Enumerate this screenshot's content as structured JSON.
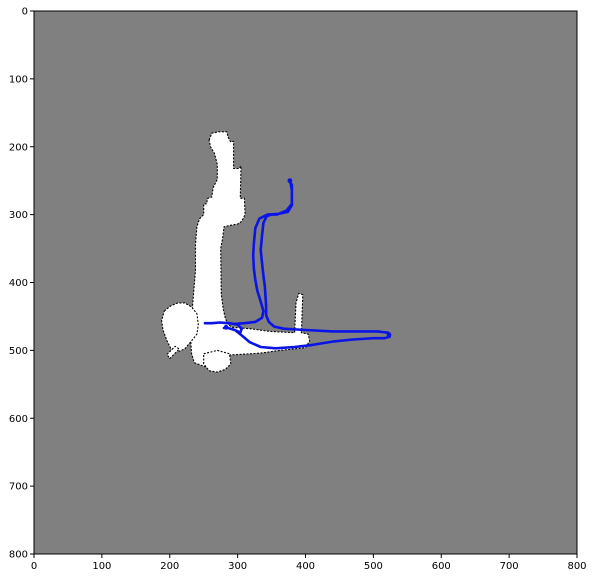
{
  "chart_data": {
    "type": "occupancy-grid-map",
    "title": "",
    "xlabel": "",
    "ylabel": "",
    "xlim": [
      0,
      800
    ],
    "ylim": [
      800,
      0
    ],
    "x_ticks": [
      0,
      100,
      200,
      300,
      400,
      500,
      600,
      700,
      800
    ],
    "y_ticks": [
      0,
      100,
      200,
      300,
      400,
      500,
      600,
      700,
      800
    ],
    "grid": false,
    "colors": {
      "unknown": "#808080",
      "free": "#ffffff",
      "obstacle": "#000000",
      "path": "#0a14e6"
    },
    "free_regions": [
      {
        "name": "top-branch",
        "polygon": [
          [
            258,
            190
          ],
          [
            262,
            180
          ],
          [
            272,
            178
          ],
          [
            284,
            178
          ],
          [
            286,
            186
          ],
          [
            290,
            193
          ],
          [
            294,
            192
          ],
          [
            294,
            232
          ],
          [
            302,
            232
          ],
          [
            305,
            228
          ],
          [
            304,
            276
          ],
          [
            310,
            276
          ],
          [
            311,
            300
          ],
          [
            306,
            310
          ],
          [
            300,
            314
          ],
          [
            288,
            316
          ],
          [
            280,
            318
          ],
          [
            278,
            334
          ],
          [
            276,
            345
          ],
          [
            275,
            350
          ],
          [
            276,
            418
          ],
          [
            279,
            440
          ],
          [
            282,
            453
          ],
          [
            286,
            462
          ],
          [
            292,
            466
          ],
          [
            318,
            468
          ],
          [
            348,
            472
          ],
          [
            384,
            474
          ],
          [
            386,
            430
          ],
          [
            390,
            416
          ],
          [
            396,
            418
          ],
          [
            394,
            474
          ],
          [
            404,
            476
          ],
          [
            406,
            486
          ],
          [
            400,
            496
          ],
          [
            362,
            500
          ],
          [
            334,
            504
          ],
          [
            304,
            506
          ],
          [
            284,
            507
          ],
          [
            272,
            512
          ],
          [
            260,
            520
          ],
          [
            252,
            524
          ],
          [
            236,
            518
          ],
          [
            232,
            504
          ],
          [
            230,
            470
          ],
          [
            234,
            430
          ],
          [
            238,
            382
          ],
          [
            238,
            344
          ],
          [
            240,
            318
          ],
          [
            244,
            306
          ],
          [
            250,
            300
          ],
          [
            250,
            284
          ],
          [
            254,
            284
          ],
          [
            256,
            276
          ],
          [
            262,
            274
          ],
          [
            264,
            260
          ],
          [
            270,
            248
          ],
          [
            270,
            226
          ],
          [
            266,
            210
          ],
          [
            260,
            200
          ]
        ]
      },
      {
        "name": "west-lobe",
        "polygon": [
          [
            192,
            442
          ],
          [
            202,
            434
          ],
          [
            212,
            430
          ],
          [
            222,
            430
          ],
          [
            232,
            436
          ],
          [
            240,
            446
          ],
          [
            242,
            462
          ],
          [
            240,
            476
          ],
          [
            232,
            486
          ],
          [
            222,
            498
          ],
          [
            212,
            502
          ],
          [
            202,
            498
          ],
          [
            196,
            486
          ],
          [
            190,
            470
          ],
          [
            188,
            456
          ]
        ]
      },
      {
        "name": "west-lobe-spike",
        "polygon": [
          [
            196,
            506
          ],
          [
            208,
            494
          ],
          [
            214,
            498
          ],
          [
            200,
            512
          ]
        ]
      },
      {
        "name": "lower-bulge",
        "polygon": [
          [
            250,
            505
          ],
          [
            270,
            500
          ],
          [
            288,
            505
          ],
          [
            290,
            520
          ],
          [
            282,
            528
          ],
          [
            270,
            532
          ],
          [
            258,
            530
          ],
          [
            250,
            520
          ]
        ]
      }
    ],
    "robot_path": [
      [
        377,
        252
      ],
      [
        380,
        256
      ],
      [
        380,
        284
      ],
      [
        372,
        294
      ],
      [
        358,
        300
      ],
      [
        350,
        300
      ],
      [
        343,
        302
      ],
      [
        338,
        312
      ],
      [
        336,
        330
      ],
      [
        334,
        352
      ],
      [
        336,
        372
      ],
      [
        338,
        390
      ],
      [
        340,
        405
      ],
      [
        341,
        420
      ],
      [
        342,
        435
      ],
      [
        342,
        448
      ],
      [
        346,
        458
      ],
      [
        354,
        465
      ],
      [
        368,
        468
      ],
      [
        400,
        470
      ],
      [
        440,
        472
      ],
      [
        478,
        472
      ],
      [
        505,
        472
      ],
      [
        522,
        474
      ],
      [
        524,
        480
      ],
      [
        516,
        482
      ],
      [
        500,
        482
      ],
      [
        470,
        484
      ],
      [
        440,
        487
      ],
      [
        410,
        492
      ],
      [
        384,
        495
      ],
      [
        356,
        497
      ],
      [
        334,
        495
      ],
      [
        318,
        488
      ],
      [
        306,
        478
      ],
      [
        296,
        470
      ],
      [
        286,
        467
      ],
      [
        280,
        467
      ],
      [
        286,
        467
      ],
      [
        296,
        470
      ],
      [
        304,
        474
      ],
      [
        306,
        468
      ],
      [
        300,
        462
      ],
      [
        288,
        460
      ],
      [
        274,
        459
      ],
      [
        262,
        460
      ],
      [
        252,
        460
      ],
      [
        262,
        460
      ],
      [
        274,
        459
      ],
      [
        286,
        460
      ],
      [
        296,
        461
      ],
      [
        310,
        460
      ],
      [
        326,
        458
      ],
      [
        336,
        452
      ],
      [
        338,
        442
      ],
      [
        334,
        428
      ],
      [
        329,
        412
      ],
      [
        326,
        396
      ],
      [
        324,
        380
      ],
      [
        323,
        360
      ],
      [
        324,
        342
      ],
      [
        326,
        320
      ],
      [
        332,
        306
      ],
      [
        344,
        300
      ],
      [
        360,
        299
      ],
      [
        374,
        296
      ],
      [
        380,
        286
      ],
      [
        380,
        264
      ],
      [
        378,
        254
      ]
    ],
    "path_points": [
      [
        283,
        466
      ],
      [
        523,
        477
      ],
      [
        377,
        250
      ]
    ]
  }
}
